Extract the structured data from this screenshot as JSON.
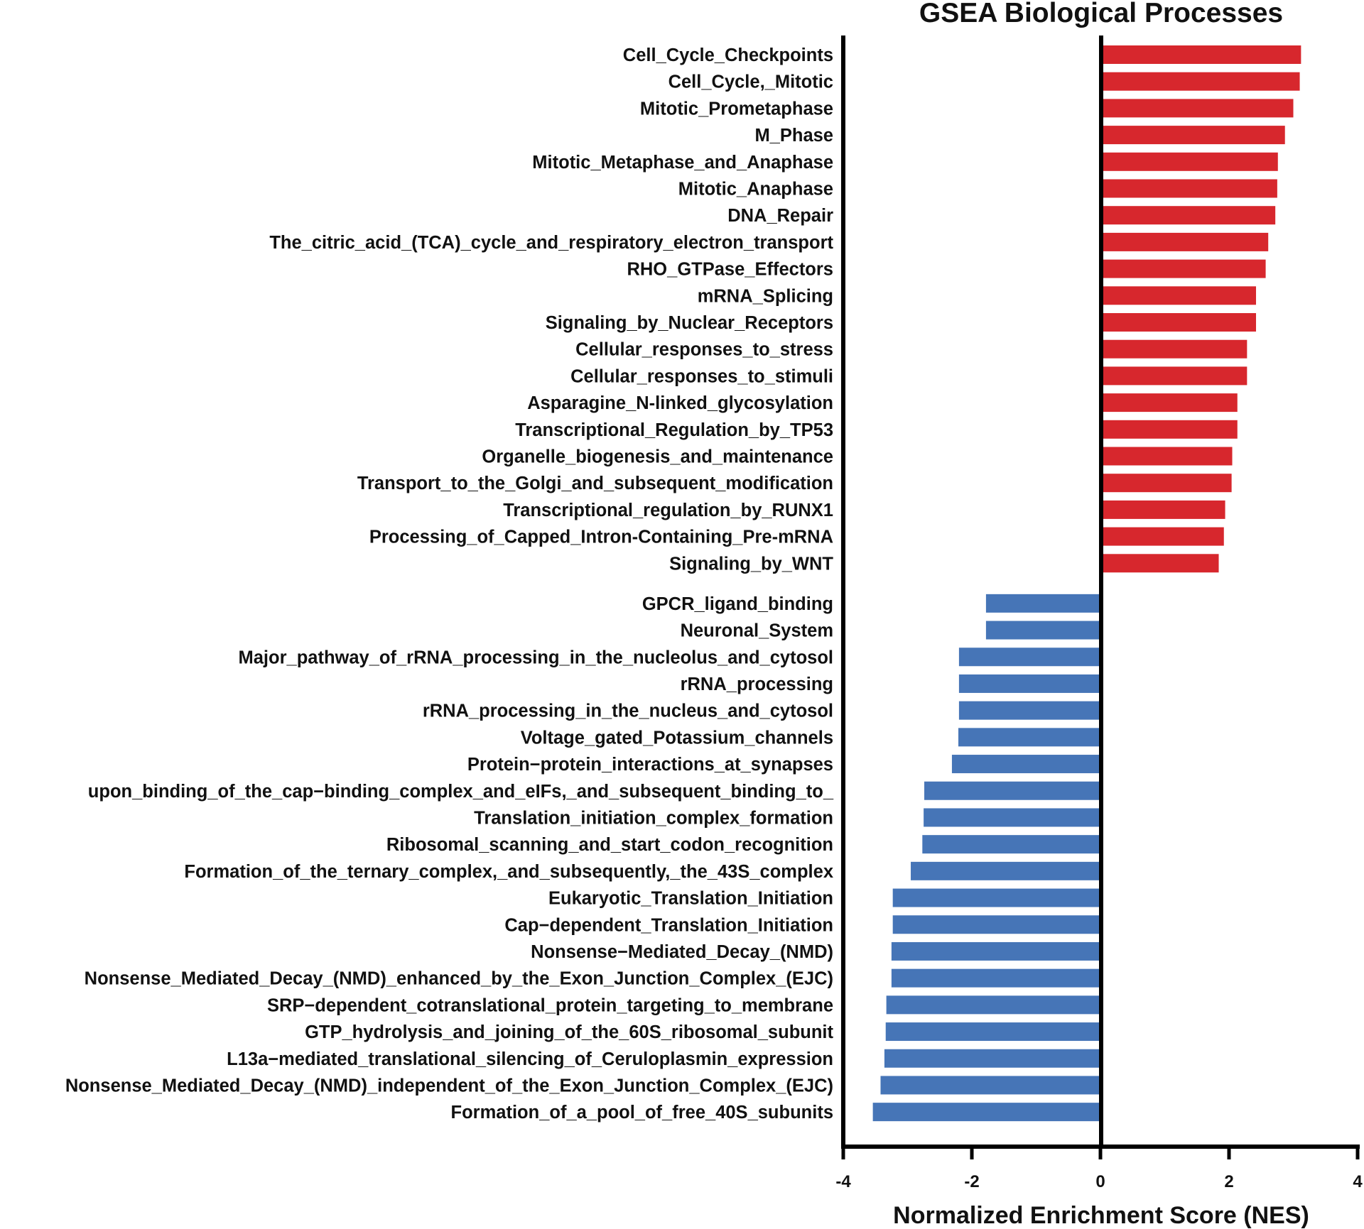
{
  "chart_data": {
    "type": "bar",
    "orientation": "horizontal",
    "title": "GSEA Biological Processes",
    "xlabel": "Normalized Enrichment Score (NES)",
    "ylabel": "",
    "xlim": [
      -4,
      4
    ],
    "xticks": [
      "-4",
      "-2",
      "0",
      "2",
      "4"
    ],
    "colors": {
      "positive": "#d7272d",
      "negative": "#4675b7",
      "axis": "#000000"
    },
    "bars": [
      {
        "label": "Cell_Cycle_Checkpoints",
        "value": 3.12
      },
      {
        "label": "Cell_Cycle,_Mitotic",
        "value": 3.1
      },
      {
        "label": "Mitotic_Prometaphase",
        "value": 3.0
      },
      {
        "label": "M_Phase",
        "value": 2.87
      },
      {
        "label": "Mitotic_Metaphase_and_Anaphase",
        "value": 2.76
      },
      {
        "label": "Mitotic_Anaphase",
        "value": 2.75
      },
      {
        "label": "DNA_Repair",
        "value": 2.72
      },
      {
        "label": "The_citric_acid_(TCA)_cycle_and_respiratory_electron_transport",
        "value": 2.61
      },
      {
        "label": "RHO_GTPase_Effectors",
        "value": 2.57
      },
      {
        "label": "mRNA_Splicing",
        "value": 2.42
      },
      {
        "label": "Signaling_by_Nuclear_Receptors",
        "value": 2.42
      },
      {
        "label": "Cellular_responses_to_stress",
        "value": 2.28
      },
      {
        "label": "Cellular_responses_to_stimuli",
        "value": 2.28
      },
      {
        "label": "Asparagine_N-linked_glycosylation",
        "value": 2.13
      },
      {
        "label": "Transcriptional_Regulation_by_TP53",
        "value": 2.13
      },
      {
        "label": "Organelle_biogenesis_and_maintenance",
        "value": 2.05
      },
      {
        "label": "Transport_to_the_Golgi_and_subsequent_modification",
        "value": 2.04
      },
      {
        "label": "Transcriptional_regulation_by_RUNX1",
        "value": 1.94
      },
      {
        "label": "Processing_of_Capped_Intron-Containing_Pre-mRNA",
        "value": 1.92
      },
      {
        "label": "Signaling_by_WNT",
        "value": 1.84
      },
      {
        "label": "GPCR_ligand_binding",
        "value": -1.78
      },
      {
        "label": "Neuronal_System",
        "value": -1.78
      },
      {
        "label": "Major_pathway_of_rRNA_processing_in_the_nucleolus_and_cytosol",
        "value": -2.2
      },
      {
        "label": "rRNA_processing",
        "value": -2.2
      },
      {
        "label": "rRNA_processing_in_the_nucleus_and_cytosol",
        "value": -2.2
      },
      {
        "label": "Voltage_gated_Potassium_channels",
        "value": -2.21
      },
      {
        "label": "Protein−protein_interactions_at_synapses",
        "value": -2.31
      },
      {
        "label": "upon_binding_of_the_cap−binding_complex_and_eIFs,_and_subsequent_binding_to_",
        "value": -2.74
      },
      {
        "label": "Translation_initiation_complex_formation",
        "value": -2.75
      },
      {
        "label": "Ribosomal_scanning_and_start_codon_recognition",
        "value": -2.77
      },
      {
        "label": "Formation_of_the_ternary_complex,_and_subsequently,_the_43S_complex",
        "value": -2.95
      },
      {
        "label": "Eukaryotic_Translation_Initiation",
        "value": -3.23
      },
      {
        "label": "Cap−dependent_Translation_Initiation",
        "value": -3.23
      },
      {
        "label": "Nonsense−Mediated_Decay_(NMD)",
        "value": -3.25
      },
      {
        "label": "Nonsense_Mediated_Decay_(NMD)_enhanced_by_the_Exon_Junction_Complex_(EJC)",
        "value": -3.25
      },
      {
        "label": "SRP−dependent_cotranslational_protein_targeting_to_membrane",
        "value": -3.33
      },
      {
        "label": "GTP_hydrolysis_and_joining_of_the_60S_ribosomal_subunit",
        "value": -3.34
      },
      {
        "label": "L13a−mediated_translational_silencing_of_Ceruloplasmin_expression",
        "value": -3.36
      },
      {
        "label": "Nonsense_Mediated_Decay_(NMD)_independent_of_the_Exon_Junction_Complex_(EJC)",
        "value": -3.42
      },
      {
        "label": "Formation_of_a_pool_of_free_40S_subunits",
        "value": -3.54
      }
    ]
  }
}
